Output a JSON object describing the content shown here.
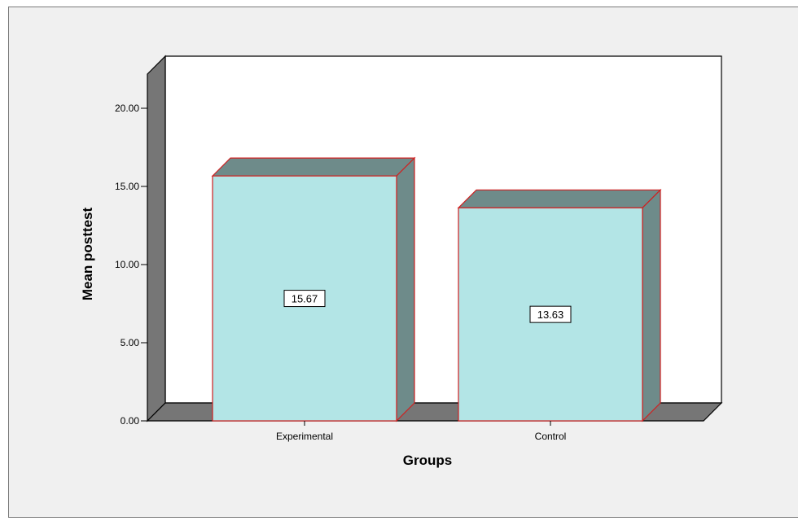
{
  "chart_data": {
    "type": "bar",
    "style": "3d",
    "categories": [
      "Experimental",
      "Control"
    ],
    "values": [
      15.67,
      13.63
    ],
    "data_labels": [
      "15.67",
      "13.63"
    ],
    "xlabel": "Groups",
    "ylabel": "Mean posttest",
    "ylim": [
      0,
      20
    ],
    "yticks": [
      "0.00",
      "5.00",
      "10.00",
      "15.00",
      "20.00"
    ],
    "grid": false,
    "legend": "none",
    "colors": {
      "bar_front": "#b3e5e6",
      "bar_side": "#6e8b8a",
      "bar_edge": "#d02020",
      "back_wall": "#ffffff",
      "side_wall": "#767676",
      "floor": "#767676",
      "background": "#f0f0f0"
    }
  }
}
